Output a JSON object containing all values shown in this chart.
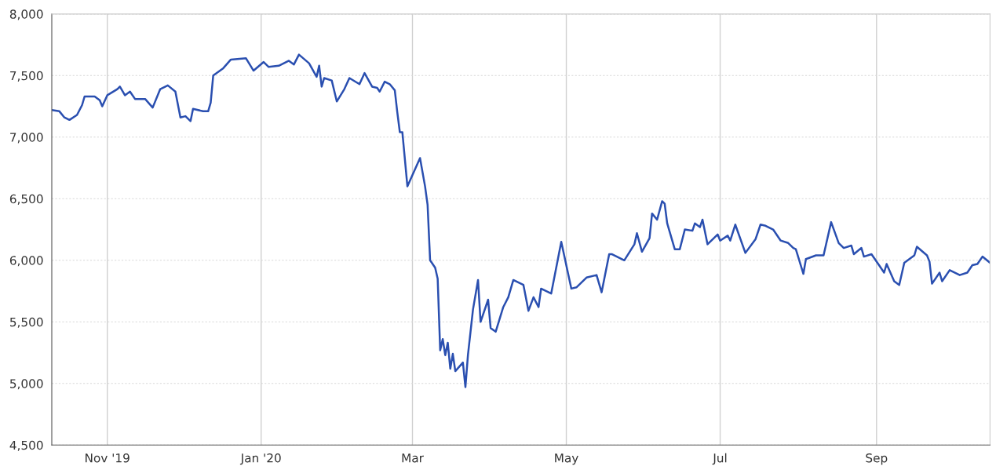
{
  "chart_data": {
    "type": "line",
    "xlim": [
      "2019-10-10",
      "2020-10-16"
    ],
    "xticks": [
      {
        "value": "2019-11-01",
        "label": "Nov '19"
      },
      {
        "value": "2020-01-01",
        "label": "Jan '20"
      },
      {
        "value": "2020-03-01",
        "label": "Mar"
      },
      {
        "value": "2020-05-01",
        "label": "May"
      },
      {
        "value": "2020-07-01",
        "label": "Jul"
      },
      {
        "value": "2020-09-01",
        "label": "Sep"
      }
    ],
    "ylim": [
      4500,
      8000
    ],
    "yticks": [
      {
        "value": 4500,
        "label": "4,500"
      },
      {
        "value": 5000,
        "label": "5,000"
      },
      {
        "value": 5500,
        "label": "5,500"
      },
      {
        "value": 6000,
        "label": "6,000"
      },
      {
        "value": 6500,
        "label": "6,500"
      },
      {
        "value": 7000,
        "label": "7,000"
      },
      {
        "value": 7500,
        "label": "7,500"
      },
      {
        "value": 8000,
        "label": "8,000"
      }
    ],
    "grid": true,
    "marker": "none",
    "line_style": "solid",
    "x": [
      "2019-10-10",
      "2019-10-13",
      "2019-10-15",
      "2019-10-17",
      "2019-10-20",
      "2019-10-22",
      "2019-10-23",
      "2019-10-27",
      "2019-10-29",
      "2019-10-30",
      "2019-11-01",
      "2019-11-05",
      "2019-11-06",
      "2019-11-08",
      "2019-11-10",
      "2019-11-12",
      "2019-11-16",
      "2019-11-19",
      "2019-11-22",
      "2019-11-25",
      "2019-11-28",
      "2019-11-30",
      "2019-12-02",
      "2019-12-04",
      "2019-12-05",
      "2019-12-09",
      "2019-12-11",
      "2019-12-12",
      "2019-12-13",
      "2019-12-17",
      "2019-12-20",
      "2019-12-26",
      "2019-12-29",
      "2020-01-02",
      "2020-01-04",
      "2020-01-08",
      "2020-01-12",
      "2020-01-14",
      "2020-01-16",
      "2020-01-20",
      "2020-01-23",
      "2020-01-24",
      "2020-01-25",
      "2020-01-26",
      "2020-01-29",
      "2020-01-31",
      "2020-02-03",
      "2020-02-05",
      "2020-02-09",
      "2020-02-11",
      "2020-02-14",
      "2020-02-16",
      "2020-02-17",
      "2020-02-19",
      "2020-02-21",
      "2020-02-23",
      "2020-02-24",
      "2020-02-25",
      "2020-02-26",
      "2020-02-28",
      "2020-03-04",
      "2020-03-06",
      "2020-03-07",
      "2020-03-08",
      "2020-03-10",
      "2020-03-11",
      "2020-03-12",
      "2020-03-13",
      "2020-03-14",
      "2020-03-15",
      "2020-03-16",
      "2020-03-17",
      "2020-03-18",
      "2020-03-21",
      "2020-03-22",
      "2020-03-23",
      "2020-03-25",
      "2020-03-27",
      "2020-03-28",
      "2020-03-31",
      "2020-04-01",
      "2020-04-03",
      "2020-04-06",
      "2020-04-08",
      "2020-04-10",
      "2020-04-14",
      "2020-04-16",
      "2020-04-18",
      "2020-04-20",
      "2020-04-21",
      "2020-04-25",
      "2020-04-29",
      "2020-05-03",
      "2020-05-05",
      "2020-05-09",
      "2020-05-13",
      "2020-05-15",
      "2020-05-18",
      "2020-05-19",
      "2020-05-24",
      "2020-05-28",
      "2020-05-29",
      "2020-05-31",
      "2020-06-03",
      "2020-06-04",
      "2020-06-06",
      "2020-06-08",
      "2020-06-09",
      "2020-06-10",
      "2020-06-11",
      "2020-06-13",
      "2020-06-15",
      "2020-06-17",
      "2020-06-20",
      "2020-06-21",
      "2020-06-23",
      "2020-06-24",
      "2020-06-26",
      "2020-06-30",
      "2020-07-01",
      "2020-07-04",
      "2020-07-05",
      "2020-07-07",
      "2020-07-11",
      "2020-07-15",
      "2020-07-17",
      "2020-07-19",
      "2020-07-22",
      "2020-07-25",
      "2020-07-28",
      "2020-07-30",
      "2020-07-31",
      "2020-08-03",
      "2020-08-04",
      "2020-08-08",
      "2020-08-11",
      "2020-08-14",
      "2020-08-17",
      "2020-08-19",
      "2020-08-22",
      "2020-08-23",
      "2020-08-26",
      "2020-08-27",
      "2020-08-30",
      "2020-09-02",
      "2020-09-04",
      "2020-09-05",
      "2020-09-08",
      "2020-09-10",
      "2020-09-12",
      "2020-09-14",
      "2020-09-16",
      "2020-09-17",
      "2020-09-21",
      "2020-09-22",
      "2020-09-23",
      "2020-09-26",
      "2020-09-27",
      "2020-09-30",
      "2020-10-04",
      "2020-10-07",
      "2020-10-09",
      "2020-10-11",
      "2020-10-13",
      "2020-10-16"
    ],
    "series": [
      {
        "color": "#2a4fb0",
        "values": [
          7220,
          7210,
          7160,
          7140,
          7180,
          7260,
          7330,
          7330,
          7300,
          7250,
          7340,
          7390,
          7410,
          7340,
          7370,
          7310,
          7310,
          7240,
          7390,
          7420,
          7370,
          7160,
          7170,
          7130,
          7230,
          7210,
          7210,
          7280,
          7500,
          7560,
          7630,
          7640,
          7540,
          7610,
          7570,
          7580,
          7620,
          7590,
          7670,
          7600,
          7490,
          7580,
          7410,
          7480,
          7460,
          7290,
          7390,
          7480,
          7430,
          7520,
          7410,
          7400,
          7370,
          7450,
          7430,
          7380,
          7200,
          7040,
          7040,
          6600,
          6830,
          6600,
          6450,
          6000,
          5940,
          5850,
          5270,
          5360,
          5230,
          5330,
          5120,
          5240,
          5100,
          5170,
          4970,
          5230,
          5600,
          5840,
          5500,
          5680,
          5450,
          5420,
          5620,
          5700,
          5840,
          5800,
          5590,
          5700,
          5620,
          5770,
          5730,
          6150,
          5770,
          5780,
          5860,
          5880,
          5740,
          6050,
          6050,
          6000,
          6130,
          6220,
          6070,
          6180,
          6380,
          6330,
          6480,
          6460,
          6300,
          6230,
          6090,
          6090,
          6250,
          6240,
          6300,
          6270,
          6330,
          6130,
          6210,
          6160,
          6200,
          6160,
          6290,
          6060,
          6170,
          6290,
          6280,
          6250,
          6160,
          6140,
          6100,
          6090,
          5890,
          6010,
          6040,
          6040,
          6310,
          6140,
          6100,
          6120,
          6050,
          6100,
          6030,
          6050,
          5960,
          5900,
          5970,
          5830,
          5800,
          5980,
          6010,
          6040,
          6110,
          6040,
          5990,
          5810,
          5900,
          5830,
          5920,
          5880,
          5900,
          5960,
          5970,
          6030,
          5980
        ]
      }
    ]
  }
}
